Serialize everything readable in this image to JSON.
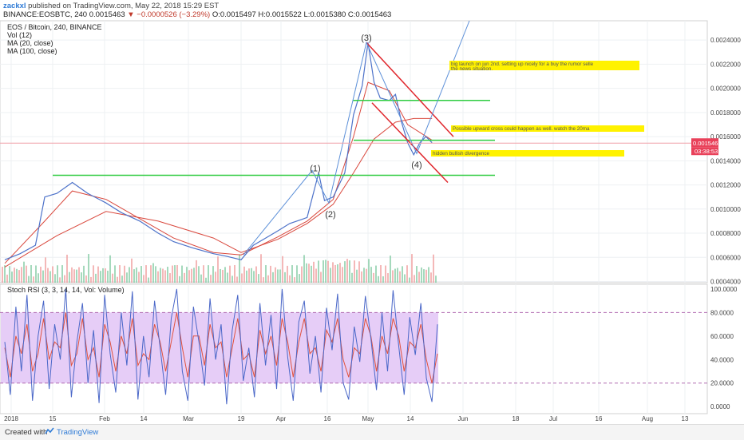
{
  "header": {
    "user": "zackxl",
    "published": "published on TradingView.com, May 22, 2018 15:29 EST",
    "symbol_line": "BINANCE:EOSBTC, 240 0.0015463",
    "change": "▼ −0.0000526 (−3.29%)",
    "ohlc": "O:0.0015497 H:0.0015522 L:0.0015380 C:0.0015463"
  },
  "legend": {
    "title": "EOS / Bitcoin, 240, BINANCE",
    "vol": "Vol (12)",
    "ma20": "MA (20, close)",
    "ma100": "MA (100, close)"
  },
  "rsi_legend": "Stoch RSI (3, 3, 14, 14, Vol: Volume)",
  "footer": {
    "created": "Created with",
    "brand": "TradingView"
  },
  "colors": {
    "price_line": "#4d72c9",
    "ma_line": "#d9473c",
    "trend_green": "#2ecc40",
    "channel_red": "#e0262c",
    "wave_blue": "#5b8fd8",
    "k_line": "#4a67c8",
    "d_line": "#e0523e",
    "rsi_band": "#e6cdf7",
    "annotation_bg": "#fff200",
    "price_badge": "#e9415a"
  },
  "chart_data": [
    {
      "type": "line",
      "title": "EOS / Bitcoin, 240, BINANCE",
      "x_ticks": [
        "2018",
        "15",
        "Feb",
        "14",
        "Mar",
        "19",
        "Apr",
        "16",
        "May",
        "14",
        "Jun",
        "18",
        "Jul",
        "16",
        "Aug",
        "13"
      ],
      "y_ticks": [
        "0.0024000",
        "0.0022000",
        "0.0020000",
        "0.0018000",
        "0.0016000",
        "0.0014000",
        "0.0012000",
        "0.0010000",
        "0.0008000",
        "0.0006000",
        "0.0004000"
      ],
      "ylim": [
        0.00039,
        0.00256
      ],
      "series": [
        {
          "name": "EOS / Bitcoin",
          "x": [
            "2018-01-01",
            "2018-01-06",
            "2018-01-11",
            "2018-01-14",
            "2018-01-18",
            "2018-01-23",
            "2018-01-28",
            "2018-02-03",
            "2018-02-08",
            "2018-02-14",
            "2018-02-20",
            "2018-02-25",
            "2018-03-03",
            "2018-03-10",
            "2018-03-14",
            "2018-03-19",
            "2018-03-23",
            "2018-03-27",
            "2018-03-31",
            "2018-04-04",
            "2018-04-10",
            "2018-04-14",
            "2018-04-16",
            "2018-04-19",
            "2018-04-23",
            "2018-04-26",
            "2018-04-29",
            "2018-05-01",
            "2018-05-03",
            "2018-05-05",
            "2018-05-08",
            "2018-05-10",
            "2018-05-12",
            "2018-05-14",
            "2018-05-16",
            "2018-05-18",
            "2018-05-20",
            "2018-05-22"
          ],
          "values": [
            0.00058,
            0.00063,
            0.0007,
            0.0011,
            0.00113,
            0.00122,
            0.00113,
            0.00105,
            0.00097,
            0.0009,
            0.0008,
            0.00073,
            0.00068,
            0.00063,
            0.00061,
            0.00058,
            0.0007,
            0.00076,
            0.00082,
            0.00088,
            0.00093,
            0.0013,
            0.00107,
            0.0011,
            0.0013,
            0.00178,
            0.00202,
            0.00238,
            0.00205,
            0.00192,
            0.0019,
            0.00195,
            0.00172,
            0.00155,
            0.00145,
            0.00155,
            0.0016,
            0.00155
          ]
        },
        {
          "name": "MA (20, close)",
          "x": [
            "2018-01-01",
            "2018-01-14",
            "2018-01-23",
            "2018-02-03",
            "2018-02-14",
            "2018-02-25",
            "2018-03-10",
            "2018-03-19",
            "2018-03-31",
            "2018-04-10",
            "2018-04-19",
            "2018-04-26",
            "2018-05-01",
            "2018-05-08",
            "2018-05-14",
            "2018-05-22"
          ],
          "values": [
            0.00055,
            0.0009,
            0.00115,
            0.00108,
            0.00092,
            0.00076,
            0.00064,
            0.00062,
            0.00077,
            0.0009,
            0.00108,
            0.0016,
            0.00205,
            0.00198,
            0.0017,
            0.00157
          ]
        },
        {
          "name": "MA (100, close)",
          "x": [
            "2018-01-01",
            "2018-01-18",
            "2018-02-03",
            "2018-02-20",
            "2018-03-10",
            "2018-03-19",
            "2018-03-31",
            "2018-04-10",
            "2018-04-19",
            "2018-04-26",
            "2018-05-03",
            "2018-05-10",
            "2018-05-16",
            "2018-05-22"
          ],
          "values": [
            0.00052,
            0.00078,
            0.00098,
            0.0009,
            0.00076,
            0.00064,
            0.00075,
            0.00088,
            0.00104,
            0.0013,
            0.00158,
            0.00172,
            0.00175,
            0.00175
          ]
        }
      ],
      "last_price": "0.0015463",
      "countdown": "03:38:53",
      "wave_labels": [
        "(1)",
        "(2)",
        "(3)",
        "(4)"
      ],
      "annotations": [
        "big launch on jun 2nd. setting up nicely for a buy the rumor selle the news situation.",
        "Possible upward cross could happen as well. watch the 20ma",
        "hidden bullish divergence"
      ],
      "grid": true,
      "legend_position": "top-left"
    },
    {
      "type": "line",
      "title": "Stoch RSI (3, 3, 14, 14, Vol: Volume)",
      "y_ticks": [
        "100.0000",
        "80.0000",
        "60.0000",
        "40.0000",
        "20.0000",
        "0.0000"
      ],
      "ylim": [
        -6,
        104
      ],
      "band": [
        20,
        80
      ],
      "series": [
        {
          "name": "K",
          "values": [
            55,
            10,
            85,
            30,
            95,
            5,
            60,
            90,
            15,
            70,
            40,
            100,
            8,
            55,
            88,
            20,
            65,
            3,
            95,
            45,
            12,
            80,
            35,
            98,
            6,
            60,
            25,
            90,
            50,
            10,
            75,
            100,
            30,
            5,
            85,
            55,
            18,
            92,
            40,
            70,
            2,
            65,
            95,
            22,
            50,
            8,
            88,
            35,
            78,
            15,
            100,
            42,
            5,
            72,
            90,
            28,
            60,
            12,
            84,
            48,
            96,
            20,
            6,
            68,
            38,
            94,
            58,
            14,
            80,
            30,
            99,
            52,
            10,
            76,
            44,
            88,
            24,
            4,
            70
          ]
        },
        {
          "name": "D",
          "values": [
            50,
            25,
            60,
            45,
            70,
            30,
            45,
            75,
            40,
            55,
            50,
            80,
            35,
            45,
            75,
            40,
            50,
            25,
            70,
            55,
            30,
            60,
            45,
            75,
            35,
            45,
            40,
            70,
            55,
            30,
            55,
            80,
            50,
            25,
            60,
            60,
            35,
            70,
            50,
            55,
            25,
            50,
            75,
            40,
            45,
            25,
            65,
            45,
            60,
            35,
            75,
            55,
            25,
            55,
            75,
            45,
            50,
            30,
            65,
            55,
            75,
            40,
            25,
            50,
            45,
            75,
            60,
            30,
            60,
            45,
            75,
            60,
            30,
            55,
            50,
            70,
            40,
            20,
            45
          ]
        }
      ],
      "legend_position": "top-left"
    }
  ]
}
